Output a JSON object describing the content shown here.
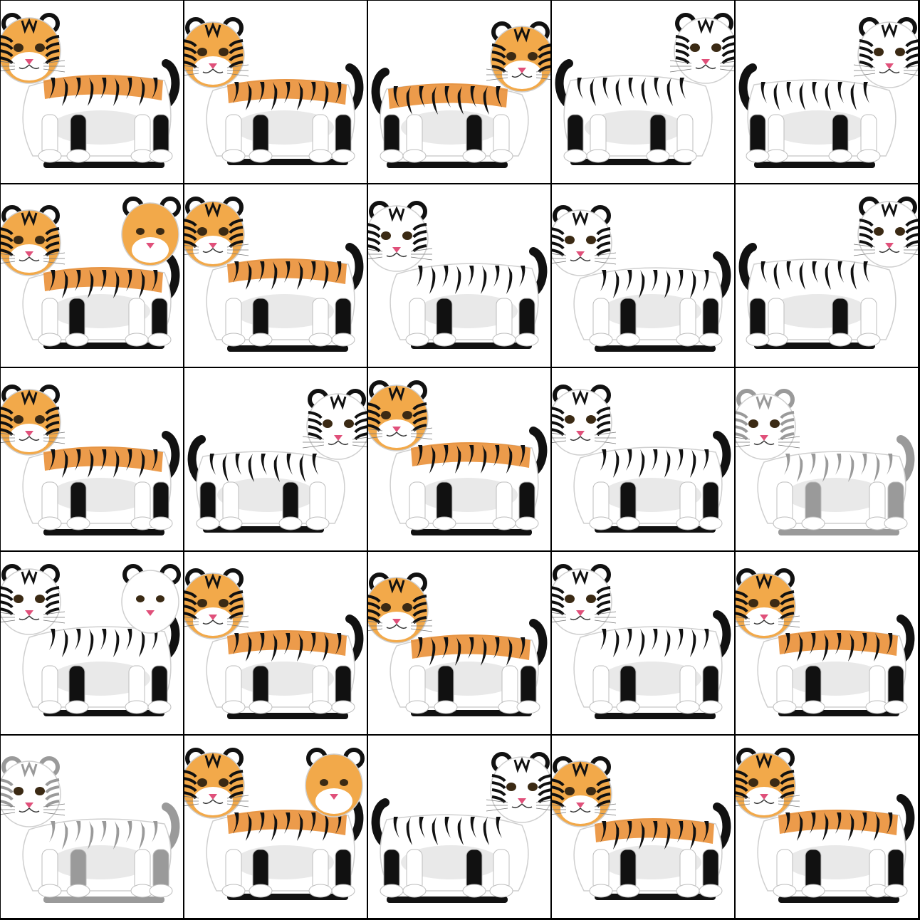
{
  "grid": {
    "rows": 5,
    "cols": 5,
    "background": "#000000",
    "tile_background": "#ffffff"
  },
  "palette": {
    "orange": "#e9892c",
    "orange_light": "#f2a94a",
    "black": "#111111",
    "white": "#ffffff",
    "shade": "#e9e9e9",
    "nose": "#e0507a"
  },
  "tiles": [
    {
      "name": "tiger-lying-orange-head-left",
      "coat": "orange",
      "facing": "left",
      "pose": "lying"
    },
    {
      "name": "tiger-sitting-orange-front",
      "coat": "orange",
      "facing": "left",
      "pose": "sitting"
    },
    {
      "name": "tiger-crouching-orange-head-right",
      "coat": "orange",
      "facing": "right",
      "pose": "crouching"
    },
    {
      "name": "tiger-crouching-white-head-right",
      "coat": "white",
      "facing": "right",
      "pose": "crouching"
    },
    {
      "name": "tiger-lying-white-head-right",
      "coat": "white",
      "facing": "right",
      "pose": "lying"
    },
    {
      "name": "tiger-pair-orange",
      "coat": "orange",
      "facing": "left",
      "pose": "pair"
    },
    {
      "name": "tiger-walking-orange-front",
      "coat": "orange",
      "facing": "left",
      "pose": "walking"
    },
    {
      "name": "tiger-standing-white-head-left",
      "coat": "white",
      "facing": "left",
      "pose": "standing"
    },
    {
      "name": "tiger-standing-white-head-left-2",
      "coat": "white",
      "facing": "left",
      "pose": "standing"
    },
    {
      "name": "tiger-lying-white-head-right-2",
      "coat": "white",
      "facing": "right",
      "pose": "lying"
    },
    {
      "name": "tiger-lying-orange-long",
      "coat": "orange",
      "facing": "left",
      "pose": "lying"
    },
    {
      "name": "tiger-white-front-center",
      "coat": "white",
      "facing": "right",
      "pose": "sitting"
    },
    {
      "name": "tiger-walking-orange-head-left",
      "coat": "orange",
      "facing": "left",
      "pose": "walking"
    },
    {
      "name": "tiger-prowling-white-head-left",
      "coat": "white",
      "facing": "left",
      "pose": "crouching"
    },
    {
      "name": "tiger-faded-stripes",
      "coat": "faded",
      "facing": "left",
      "pose": "lying"
    },
    {
      "name": "tiger-pair-white",
      "coat": "white",
      "facing": "left",
      "pose": "pair"
    },
    {
      "name": "tiger-standing-orange-head-left",
      "coat": "orange",
      "facing": "left",
      "pose": "standing"
    },
    {
      "name": "tiger-lying-orange-head-left-tail-up",
      "coat": "orange",
      "facing": "left",
      "pose": "lying"
    },
    {
      "name": "tiger-headless-white-body",
      "coat": "white",
      "facing": "left",
      "pose": "standing"
    },
    {
      "name": "tiger-lying-orange-head-left-2",
      "coat": "orange",
      "facing": "left",
      "pose": "lying"
    },
    {
      "name": "tiger-ears-only-faded",
      "coat": "faded",
      "facing": "left",
      "pose": "lying"
    },
    {
      "name": "tiger-pair-orange-lying",
      "coat": "orange",
      "facing": "left",
      "pose": "pair"
    },
    {
      "name": "tiger-white-front-curled-tail",
      "coat": "white",
      "facing": "right",
      "pose": "sitting"
    },
    {
      "name": "tiger-standing-orange-head-left-2",
      "coat": "orange",
      "facing": "left",
      "pose": "standing"
    },
    {
      "name": "tiger-lying-orange-head-left-3",
      "coat": "orange",
      "facing": "left",
      "pose": "lying"
    }
  ]
}
